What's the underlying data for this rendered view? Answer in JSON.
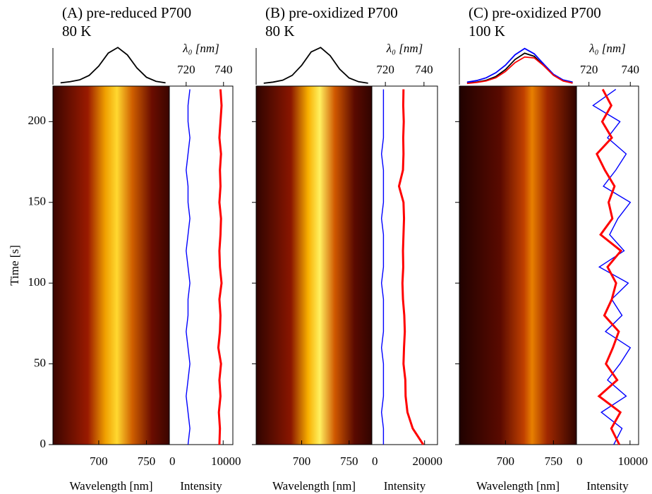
{
  "chart_data": [
    {
      "type": "spectral-trajectory",
      "title": "(A) pre-reduced P700",
      "subtitle": "80 K",
      "xlabel": "Wavelength [nm]",
      "xlim": [
        652,
        774
      ],
      "xticks": [
        700,
        750
      ],
      "ylabel": "Time [s]",
      "ylim": [
        0,
        222
      ],
      "yticks": [
        0,
        50,
        100,
        150,
        200
      ],
      "spectrum": {
        "x": [
          660,
          670,
          680,
          690,
          700,
          710,
          720,
          730,
          740,
          750,
          760,
          770
        ],
        "ylim": [
          0,
          1.1
        ],
        "series": [
          {
            "color": "#000000",
            "values": [
              0.05,
              0.08,
              0.13,
              0.25,
              0.5,
              0.85,
              1.0,
              0.8,
              0.45,
              0.2,
              0.09,
              0.05
            ]
          }
        ]
      },
      "t": [
        0,
        10,
        20,
        30,
        40,
        50,
        60,
        70,
        80,
        90,
        100,
        110,
        120,
        130,
        140,
        150,
        160,
        170,
        180,
        190,
        200,
        210,
        220
      ],
      "lambda0": {
        "label": "λ₀ [nm]",
        "xlim": [
          711,
          745
        ],
        "xticks": [
          720,
          740
        ],
        "color": "#0000ff",
        "values": [
          721,
          722,
          721,
          720,
          721,
          722,
          721,
          720,
          721,
          721,
          722,
          721,
          720,
          721,
          722,
          721,
          721,
          720,
          721,
          722,
          721,
          721,
          722
        ]
      },
      "intensity": {
        "label": "Intensity",
        "xlim": [
          0,
          11800
        ],
        "xticks": [
          0,
          10000
        ],
        "color": "#ff0000",
        "values": [
          9300,
          9400,
          9200,
          9500,
          9300,
          9600,
          9100,
          9400,
          9500,
          9300,
          9700,
          9400,
          9300,
          9500,
          9600,
          9300,
          9500,
          9400,
          9600,
          9300,
          9500,
          9700,
          9500
        ]
      }
    },
    {
      "type": "spectral-trajectory",
      "title": "(B) pre-oxidized P700",
      "subtitle": "80 K",
      "xlabel": "Wavelength [nm]",
      "xlim": [
        652,
        774
      ],
      "xticks": [
        700,
        750
      ],
      "spectrum": {
        "x": [
          660,
          670,
          680,
          690,
          700,
          710,
          720,
          730,
          740,
          750,
          760,
          770
        ],
        "ylim": [
          0,
          1.1
        ],
        "series": [
          {
            "color": "#000000",
            "values": [
              0.04,
              0.07,
              0.12,
              0.25,
              0.52,
              0.88,
              1.0,
              0.78,
              0.42,
              0.18,
              0.08,
              0.04
            ]
          }
        ]
      },
      "t": [
        0,
        10,
        20,
        30,
        40,
        50,
        60,
        70,
        80,
        90,
        100,
        110,
        120,
        130,
        140,
        150,
        160,
        170,
        180,
        190,
        200,
        210,
        220
      ],
      "lambda0": {
        "label": "λ₀ [nm]",
        "xlim": [
          713,
          747
        ],
        "xticks": [
          720,
          740
        ],
        "color": "#0000ff",
        "values": [
          719,
          719,
          718,
          719,
          719,
          719,
          718,
          719,
          719,
          719,
          718,
          719,
          719,
          719,
          718,
          719,
          719,
          719,
          718,
          719,
          719,
          719,
          719
        ]
      },
      "intensity": {
        "label": "Intensity",
        "xlim": [
          0,
          24900
        ],
        "xticks": [
          0,
          20000
        ],
        "color": "#ff0000",
        "values": [
          19500,
          15500,
          13500,
          12800,
          12700,
          12000,
          12200,
          12500,
          12300,
          11800,
          11600,
          11900,
          11800,
          12000,
          12200,
          12000,
          10300,
          11800,
          12000,
          11900,
          12100,
          11900,
          12000
        ]
      }
    },
    {
      "type": "spectral-trajectory",
      "title": "(C) pre-oxidized P700",
      "subtitle": "100 K",
      "xlabel": "Wavelength [nm]",
      "xlim": [
        652,
        774
      ],
      "xticks": [
        700,
        750
      ],
      "spectrum": {
        "x": [
          660,
          670,
          680,
          690,
          700,
          710,
          720,
          730,
          740,
          750,
          760,
          770
        ],
        "ylim": [
          0,
          1.3
        ],
        "series": [
          {
            "color": "#000000",
            "values": [
              0.05,
              0.08,
              0.14,
              0.26,
              0.48,
              0.8,
              1.0,
              0.9,
              0.6,
              0.3,
              0.12,
              0.05
            ]
          },
          {
            "color": "#0000ff",
            "values": [
              0.08,
              0.13,
              0.22,
              0.38,
              0.62,
              0.95,
              1.15,
              0.98,
              0.65,
              0.33,
              0.15,
              0.08
            ]
          },
          {
            "color": "#ff0000",
            "values": [
              0.04,
              0.07,
              0.12,
              0.22,
              0.42,
              0.7,
              0.88,
              0.85,
              0.6,
              0.3,
              0.12,
              0.05
            ]
          }
        ]
      },
      "t": [
        0,
        10,
        20,
        30,
        40,
        50,
        60,
        70,
        80,
        90,
        100,
        110,
        120,
        130,
        140,
        150,
        160,
        170,
        180,
        190,
        200,
        210,
        220
      ],
      "lambda0": {
        "label": "λ₀ [nm]",
        "xlim": [
          714,
          744
        ],
        "xticks": [
          720,
          740
        ],
        "color": "#0000ff",
        "values": [
          732,
          736,
          726,
          738,
          729,
          735,
          740,
          728,
          736,
          731,
          739,
          725,
          737,
          730,
          734,
          740,
          727,
          733,
          738,
          729,
          735,
          722,
          733
        ]
      },
      "intensity": {
        "label": "Intensity",
        "xlim": [
          0,
          11600
        ],
        "xticks": [
          0,
          10000
        ],
        "color": "#ff0000",
        "values": [
          8000,
          6500,
          8200,
          4200,
          7600,
          5500,
          6800,
          7900,
          5200,
          6600,
          7400,
          5800,
          8300,
          4500,
          6700,
          6000,
          7100,
          5300,
          3800,
          6600,
          4800,
          6500,
          4900
        ]
      }
    }
  ]
}
